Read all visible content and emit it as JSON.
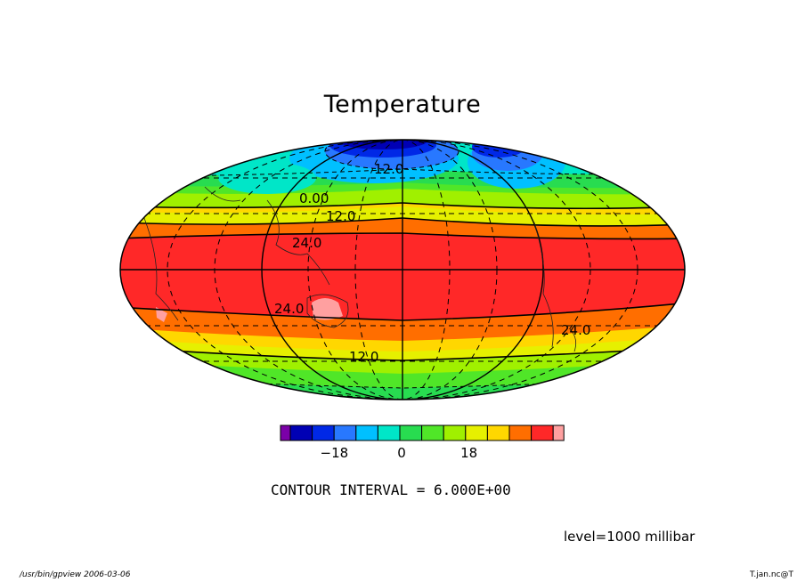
{
  "title": "Temperature",
  "colorbar": {
    "colors": [
      "#7b00a8",
      "#0000b4",
      "#0028e6",
      "#2878ff",
      "#00c0ff",
      "#00e6c8",
      "#28dc50",
      "#50e628",
      "#a0f000",
      "#e6f000",
      "#ffd700",
      "#ff6e00",
      "#ff2828",
      "#ffa0a0"
    ],
    "tick_labels": [
      {
        "text": "−18",
        "value": -18
      },
      {
        "text": "0",
        "value": 0
      },
      {
        "text": "18",
        "value": 18
      }
    ]
  },
  "contour_labels": [
    "12.0",
    "0.00",
    "12.0",
    "24.0",
    "24.0",
    "12.0",
    "24.0"
  ],
  "contour_interval_text": "CONTOUR INTERVAL = 6.000E+00",
  "level_text": "level=1000 millibar",
  "footer_left": "/usr/bin/gpview   2006-03-06",
  "footer_right": "T.jan.nc@T"
}
